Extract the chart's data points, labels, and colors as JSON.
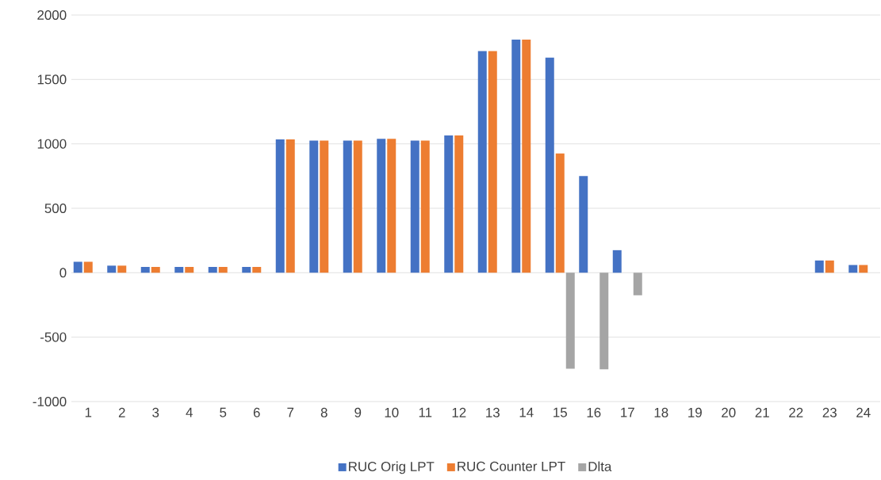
{
  "chart_data": {
    "type": "bar",
    "categories": [
      "1",
      "2",
      "3",
      "4",
      "5",
      "6",
      "7",
      "8",
      "9",
      "10",
      "11",
      "12",
      "13",
      "14",
      "15",
      "16",
      "17",
      "18",
      "19",
      "20",
      "21",
      "22",
      "23",
      "24"
    ],
    "series": [
      {
        "name": "RUC Orig LPT",
        "color": "#4472c4",
        "values": [
          85,
          55,
          45,
          45,
          45,
          45,
          1035,
          1025,
          1025,
          1040,
          1025,
          1065,
          1720,
          1810,
          1670,
          750,
          175,
          0,
          0,
          0,
          0,
          0,
          95,
          60
        ]
      },
      {
        "name": "RUC Counter LPT",
        "color": "#ed7d31",
        "values": [
          85,
          55,
          45,
          45,
          45,
          45,
          1035,
          1025,
          1025,
          1040,
          1025,
          1065,
          1720,
          1810,
          925,
          0,
          0,
          0,
          0,
          0,
          0,
          0,
          95,
          60
        ]
      },
      {
        "name": "Dlta",
        "color": "#a5a5a5",
        "values": [
          0,
          0,
          0,
          0,
          0,
          0,
          0,
          0,
          0,
          0,
          0,
          0,
          0,
          0,
          -745,
          -750,
          -175,
          0,
          0,
          0,
          0,
          0,
          0,
          0
        ]
      }
    ],
    "ylim": [
      -1000,
      2000
    ],
    "yticks": [
      -1000,
      -500,
      0,
      500,
      1000,
      1500,
      2000
    ],
    "grid": "y",
    "legend": "bottom"
  }
}
